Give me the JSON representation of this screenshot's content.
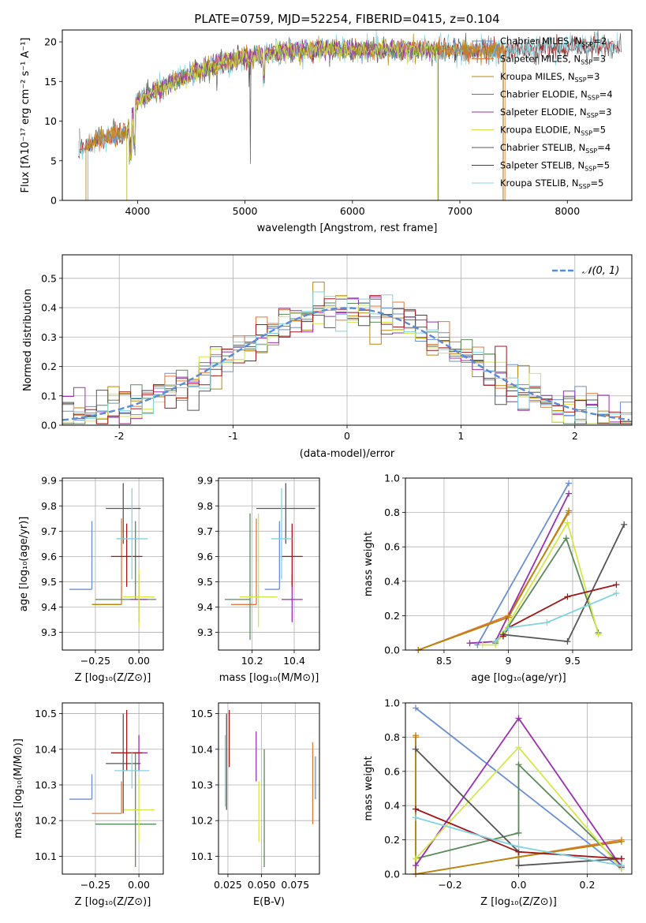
{
  "colors": {
    "chabrier_miles": "#6b8fd6",
    "salpeter_miles": "#e0783a",
    "kroupa_miles": "#b8860b",
    "chabrier_elodie": "#5a8a5a",
    "salpeter_elodie": "#9b30b0",
    "kroupa_elodie": "#d4e84a",
    "chabrier_stelib": "#555555",
    "salpeter_stelib": "#a01818",
    "kroupa_stelib": "#80d4e0"
  },
  "legend": [
    {
      "key": "chabrier_miles",
      "label": "Chabrier MILES, N",
      "sub": "SSP",
      "tail": "=2"
    },
    {
      "key": "salpeter_miles",
      "label": "Salpeter MILES, N",
      "sub": "SSP",
      "tail": "=3"
    },
    {
      "key": "kroupa_miles",
      "label": "Kroupa MILES, N",
      "sub": "SSP",
      "tail": "=3"
    },
    {
      "key": "chabrier_elodie",
      "label": "Chabrier ELODIE, N",
      "sub": "SSP",
      "tail": "=4"
    },
    {
      "key": "salpeter_elodie",
      "label": "Salpeter ELODIE, N",
      "sub": "SSP",
      "tail": "=3"
    },
    {
      "key": "kroupa_elodie",
      "label": "Kroupa ELODIE, N",
      "sub": "SSP",
      "tail": "=5"
    },
    {
      "key": "chabrier_stelib",
      "label": "Chabrier STELIB, N",
      "sub": "SSP",
      "tail": "=4"
    },
    {
      "key": "salpeter_stelib",
      "label": "Salpeter STELIB, N",
      "sub": "SSP",
      "tail": "=5"
    },
    {
      "key": "kroupa_stelib",
      "label": "Kroupa STELIB, N",
      "sub": "SSP",
      "tail": "=5"
    }
  ],
  "chart_data": [
    {
      "type": "line",
      "title": "PLATE=0759, MJD=52254, FIBERID=0415, z=0.104",
      "xlabel": "wavelength [Angstrom, rest frame]",
      "ylabel": "Flux [fλ10⁻¹⁷ erg cm⁻² s⁻¹ A⁻¹]",
      "xlim": [
        3300,
        8600
      ],
      "ylim": [
        0,
        21.5
      ],
      "xticks": [
        4000,
        5000,
        6000,
        7000,
        8000
      ],
      "yticks": [
        0,
        5,
        10,
        15,
        20
      ],
      "continuum": {
        "x": [
          3450,
          3700,
          3900,
          4000,
          4200,
          4500,
          4800,
          5200,
          5600,
          6000,
          6500,
          7000,
          7500,
          8000,
          8500
        ],
        "y": [
          6.5,
          8.0,
          8.5,
          12.5,
          14.0,
          16.0,
          17.5,
          18.5,
          19.0,
          19.0,
          19.0,
          19.0,
          19.0,
          19.3,
          19.5
        ]
      },
      "legend_position": "upper right",
      "grid": false
    },
    {
      "type": "histogram",
      "xlabel": "(data-model)/error",
      "ylabel": "Normed distribution",
      "xlim": [
        -2.5,
        2.5
      ],
      "ylim": [
        0,
        0.58
      ],
      "xticks": [
        -2,
        -1,
        0,
        1,
        2
      ],
      "yticks": [
        0.0,
        0.1,
        0.2,
        0.3,
        0.4,
        0.5
      ],
      "reference": {
        "label": "𝒩(0, 1)",
        "mean": 0,
        "sigma": 1
      },
      "bin_width": 0.1,
      "grid": true,
      "legend_position": "upper right"
    },
    {
      "type": "errorbar",
      "xlabel": "Z [log₁₀(Z/Z⊙)]",
      "ylabel": "age  [log₁₀(age/yr)]",
      "xlim": [
        -0.44,
        0.14
      ],
      "ylim": [
        9.23,
        9.91
      ],
      "xticks": [
        -0.25,
        0.0
      ],
      "xticklabels": [
        "−0.25",
        "0.00"
      ],
      "yticks": [
        9.3,
        9.4,
        9.5,
        9.6,
        9.7,
        9.8,
        9.9
      ],
      "points": [
        {
          "key": "chabrier_miles",
          "x": -0.27,
          "y": 9.47,
          "xerr": [
            0.13,
            0.0
          ],
          "yerr": [
            0.0,
            0.27
          ]
        },
        {
          "key": "salpeter_miles",
          "x": -0.1,
          "y": 9.41,
          "xerr": [
            0.17,
            0.0
          ],
          "yerr": [
            0.0,
            0.34
          ]
        },
        {
          "key": "kroupa_miles",
          "x": -0.1,
          "y": 9.41,
          "xerr": [
            0.17,
            0.0
          ],
          "yerr": [
            0.0,
            0.0
          ]
        },
        {
          "key": "chabrier_elodie",
          "x": -0.02,
          "y": 9.43,
          "xerr": [
            0.23,
            0.12
          ],
          "yerr": [
            0.0,
            0.31
          ]
        },
        {
          "key": "salpeter_elodie",
          "x": 0.0,
          "y": 9.43,
          "xerr": [
            0.05,
            0.05
          ],
          "yerr": [
            0.09,
            0.1
          ]
        },
        {
          "key": "kroupa_elodie",
          "x": 0.0,
          "y": 9.44,
          "xerr": [
            0.09,
            0.09
          ],
          "yerr": [
            0.12,
            0.11
          ]
        },
        {
          "key": "chabrier_stelib",
          "x": -0.09,
          "y": 9.79,
          "xerr": [
            0.1,
            0.1
          ],
          "yerr": [
            0.14,
            0.1
          ]
        },
        {
          "key": "salpeter_stelib",
          "x": -0.07,
          "y": 9.6,
          "xerr": [
            0.09,
            0.09
          ],
          "yerr": [
            0.12,
            0.13
          ]
        },
        {
          "key": "kroupa_stelib",
          "x": -0.04,
          "y": 9.67,
          "xerr": [
            0.09,
            0.09
          ],
          "yerr": [
            0.16,
            0.2
          ]
        }
      ]
    },
    {
      "type": "errorbar",
      "xlabel": "mass [log₁₀(M/M⊙)]",
      "xlim": [
        10.04,
        10.52
      ],
      "ylim": [
        9.23,
        9.91
      ],
      "xticks": [
        10.2,
        10.4
      ],
      "yticks": [
        9.3,
        9.4,
        9.5,
        9.6,
        9.7,
        9.8,
        9.9
      ],
      "points": [
        {
          "key": "chabrier_miles",
          "x": 10.33,
          "y": 9.47,
          "xerr": [
            0.07,
            0.0
          ],
          "yerr": [
            0.0,
            0.27
          ]
        },
        {
          "key": "salpeter_miles",
          "x": 10.22,
          "y": 9.41,
          "xerr": [
            0.12,
            0.0
          ],
          "yerr": [
            0.0,
            0.34
          ]
        },
        {
          "key": "chabrier_elodie",
          "x": 10.19,
          "y": 9.43,
          "xerr": [
            0.12,
            0.0
          ],
          "yerr": [
            0.16,
            0.34
          ]
        },
        {
          "key": "salpeter_elodie",
          "x": 10.39,
          "y": 9.43,
          "xerr": [
            0.05,
            0.05
          ],
          "yerr": [
            0.09,
            0.1
          ]
        },
        {
          "key": "kroupa_elodie",
          "x": 10.23,
          "y": 9.44,
          "xerr": [
            0.09,
            0.09
          ],
          "yerr": [
            0.12,
            0.33
          ]
        },
        {
          "key": "chabrier_stelib",
          "x": 10.36,
          "y": 9.79,
          "xerr": [
            0.14,
            0.14
          ],
          "yerr": [
            0.14,
            0.1
          ]
        },
        {
          "key": "salpeter_stelib",
          "x": 10.39,
          "y": 9.6,
          "xerr": [
            0.05,
            0.05
          ],
          "yerr": [
            0.12,
            0.13
          ]
        },
        {
          "key": "kroupa_stelib",
          "x": 10.34,
          "y": 9.67,
          "xerr": [
            0.05,
            0.05
          ],
          "yerr": [
            0.16,
            0.2
          ]
        }
      ]
    },
    {
      "type": "line",
      "xlabel": "age  [log₁₀(age/yr)]",
      "ylabel": "mass weight",
      "xlim": [
        8.2,
        9.96
      ],
      "ylim": [
        0,
        1.0
      ],
      "xticks": [
        8.5,
        9.0,
        9.5
      ],
      "yticks": [
        0.0,
        0.2,
        0.4,
        0.6,
        0.8,
        1.0
      ],
      "grid": true,
      "series": [
        {
          "key": "chabrier_miles",
          "x": [
            8.76,
            9.47
          ],
          "y": [
            0.03,
            0.97
          ]
        },
        {
          "key": "salpeter_miles",
          "x": [
            8.3,
            9.0,
            9.47
          ],
          "y": [
            0.0,
            0.2,
            0.8
          ]
        },
        {
          "key": "kroupa_miles",
          "x": [
            8.3,
            9.0,
            9.47
          ],
          "y": [
            0.0,
            0.19,
            0.81
          ]
        },
        {
          "key": "chabrier_elodie",
          "x": [
            8.9,
            8.96,
            9.45,
            9.7
          ],
          "y": [
            0.04,
            0.09,
            0.65,
            0.1
          ]
        },
        {
          "key": "salpeter_elodie",
          "x": [
            8.7,
            8.9,
            9.47
          ],
          "y": [
            0.04,
            0.05,
            0.91
          ]
        },
        {
          "key": "kroupa_elodie",
          "x": [
            8.8,
            8.9,
            8.96,
            9.46,
            9.7
          ],
          "y": [
            0.03,
            0.03,
            0.1,
            0.74,
            0.09
          ]
        },
        {
          "key": "chabrier_stelib",
          "x": [
            8.96,
            9.46,
            9.9
          ],
          "y": [
            0.09,
            0.05,
            0.73
          ]
        },
        {
          "key": "salpeter_stelib",
          "x": [
            8.96,
            9.0,
            9.46,
            9.84
          ],
          "y": [
            0.08,
            0.13,
            0.31,
            0.38
          ]
        },
        {
          "key": "kroupa_stelib",
          "x": [
            8.9,
            9.0,
            9.3,
            9.84
          ],
          "y": [
            0.05,
            0.13,
            0.16,
            0.33
          ]
        }
      ]
    },
    {
      "type": "errorbar",
      "xlabel": "Z [log₁₀(Z/Z⊙)]",
      "ylabel": "mass [log₁₀(M/M⊙)]",
      "xlim": [
        -0.44,
        0.14
      ],
      "ylim": [
        10.05,
        10.53
      ],
      "xticks": [
        -0.25,
        0.0
      ],
      "xticklabels": [
        "−0.25",
        "0.00"
      ],
      "yticks": [
        10.1,
        10.2,
        10.3,
        10.4,
        10.5
      ],
      "points": [
        {
          "key": "chabrier_miles",
          "x": -0.27,
          "y": 10.26,
          "xerr": [
            0.13,
            0.0
          ],
          "yerr": [
            0.0,
            0.07
          ]
        },
        {
          "key": "salpeter_miles",
          "x": -0.1,
          "y": 10.22,
          "xerr": [
            0.17,
            0.0
          ],
          "yerr": [
            0.0,
            0.09
          ]
        },
        {
          "key": "chabrier_elodie",
          "x": -0.02,
          "y": 10.19,
          "xerr": [
            0.23,
            0.12
          ],
          "yerr": [
            0.12,
            0.2
          ]
        },
        {
          "key": "salpeter_elodie",
          "x": 0.0,
          "y": 10.39,
          "xerr": [
            0.05,
            0.05
          ],
          "yerr": [
            0.05,
            0.05
          ]
        },
        {
          "key": "kroupa_elodie",
          "x": 0.0,
          "y": 10.23,
          "xerr": [
            0.09,
            0.09
          ],
          "yerr": [
            0.09,
            0.09
          ]
        },
        {
          "key": "chabrier_stelib",
          "x": -0.09,
          "y": 10.36,
          "xerr": [
            0.1,
            0.1
          ],
          "yerr": [
            0.14,
            0.14
          ]
        },
        {
          "key": "salpeter_stelib",
          "x": -0.07,
          "y": 10.39,
          "xerr": [
            0.09,
            0.09
          ],
          "yerr": [
            0.05,
            0.12
          ]
        },
        {
          "key": "kroupa_stelib",
          "x": -0.04,
          "y": 10.34,
          "xerr": [
            0.1,
            0.1
          ],
          "yerr": [
            0.05,
            0.05
          ]
        }
      ]
    },
    {
      "type": "errorbar",
      "xlabel": "E(B-V)",
      "xlim": [
        0.018,
        0.093
      ],
      "ylim": [
        10.05,
        10.53
      ],
      "xticks": [
        0.025,
        0.05,
        0.075
      ],
      "xticklabels": [
        "0.025",
        "0.050",
        "0.075"
      ],
      "yticks": [
        10.1,
        10.2,
        10.3,
        10.4,
        10.5
      ],
      "points": [
        {
          "key": "chabrier_miles",
          "x": 0.09,
          "y": 10.32,
          "yerr": [
            0.06,
            0.06
          ]
        },
        {
          "key": "salpeter_miles",
          "x": 0.088,
          "y": 10.31,
          "yerr": [
            0.12,
            0.11
          ]
        },
        {
          "key": "chabrier_elodie",
          "x": 0.052,
          "y": 10.24,
          "yerr": [
            0.17,
            0.16
          ]
        },
        {
          "key": "salpeter_elodie",
          "x": 0.046,
          "y": 10.38,
          "yerr": [
            0.07,
            0.07
          ]
        },
        {
          "key": "kroupa_elodie",
          "x": 0.048,
          "y": 10.22,
          "yerr": [
            0.08,
            0.09
          ]
        },
        {
          "key": "chabrier_stelib",
          "x": 0.024,
          "y": 10.36,
          "yerr": [
            0.13,
            0.14
          ]
        },
        {
          "key": "salpeter_stelib",
          "x": 0.026,
          "y": 10.43,
          "yerr": [
            0.08,
            0.08
          ]
        },
        {
          "key": "kroupa_stelib",
          "x": 0.023,
          "y": 10.34,
          "yerr": [
            0.1,
            0.1
          ]
        }
      ]
    },
    {
      "type": "line",
      "xlabel": "Z [log₁₀(Z/Z⊙)]",
      "ylabel": "mass weight",
      "xlim": [
        -0.33,
        0.33
      ],
      "ylim": [
        0,
        1.0
      ],
      "xticks": [
        -0.2,
        0.0,
        0.2
      ],
      "xticklabels": [
        "−0.2",
        "0.0",
        "0.2"
      ],
      "yticks": [
        0.0,
        0.2,
        0.4,
        0.6,
        0.8,
        1.0
      ],
      "grid": true,
      "series": [
        {
          "key": "chabrier_miles",
          "x": [
            -0.3,
            0.3
          ],
          "y": [
            0.97,
            0.03
          ]
        },
        {
          "key": "salpeter_miles",
          "x": [
            -0.3,
            -0.3,
            0.0,
            0.3
          ],
          "y": [
            0.8,
            0.0,
            0.1,
            0.2
          ]
        },
        {
          "key": "kroupa_miles",
          "x": [
            -0.3,
            -0.3,
            0.0,
            0.3
          ],
          "y": [
            0.81,
            0.0,
            0.1,
            0.19
          ]
        },
        {
          "key": "chabrier_elodie",
          "x": [
            -0.3,
            0.0,
            0.0,
            0.3
          ],
          "y": [
            0.09,
            0.24,
            0.64,
            0.05
          ]
        },
        {
          "key": "salpeter_elodie",
          "x": [
            -0.3,
            0.0,
            0.3
          ],
          "y": [
            0.05,
            0.91,
            0.04
          ]
        },
        {
          "key": "kroupa_elodie",
          "x": [
            -0.3,
            0.0,
            0.3
          ],
          "y": [
            0.09,
            0.74,
            0.03
          ]
        },
        {
          "key": "chabrier_stelib",
          "x": [
            -0.3,
            0.0,
            0.0,
            0.3
          ],
          "y": [
            0.73,
            0.13,
            0.05,
            0.09
          ]
        },
        {
          "key": "salpeter_stelib",
          "x": [
            -0.3,
            0.0,
            0.3
          ],
          "y": [
            0.38,
            0.13,
            0.09
          ]
        },
        {
          "key": "kroupa_stelib",
          "x": [
            -0.3,
            0.0,
            0.3
          ],
          "y": [
            0.33,
            0.16,
            0.05
          ]
        }
      ]
    }
  ]
}
